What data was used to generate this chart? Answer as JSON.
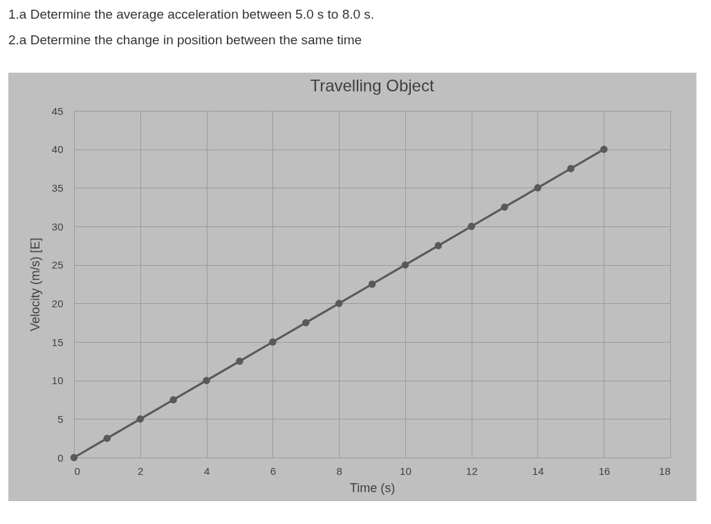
{
  "chart_data": {
    "type": "line",
    "title": "Travelling Object",
    "xlabel": "Time (s)",
    "ylabel": "Velocity (m/s) [E]",
    "annotations": [
      "1.a Determine the average acceleration between 5.0 s to 8.0 s.",
      "2.a Determine the change in position between the same time"
    ],
    "x": [
      0,
      1,
      2,
      3,
      4,
      5,
      6,
      7,
      8,
      9,
      10,
      11,
      12,
      13,
      14,
      15,
      16
    ],
    "series": [
      {
        "color": "#595959",
        "values": [
          0,
          2.5,
          5,
          7.5,
          10,
          12.5,
          15,
          17.5,
          20,
          22.5,
          25,
          27.5,
          30,
          32.5,
          35,
          37.5,
          40
        ]
      }
    ],
    "xlim": [
      0,
      18
    ],
    "xticks": [
      0,
      2,
      4,
      6,
      8,
      10,
      12,
      14,
      16,
      18
    ],
    "ylim": [
      0,
      45
    ],
    "yticks": [
      0,
      5,
      10,
      15,
      20,
      25,
      30,
      35,
      40,
      45
    ],
    "grid": true,
    "marker": "circle",
    "line_style": "solid"
  }
}
